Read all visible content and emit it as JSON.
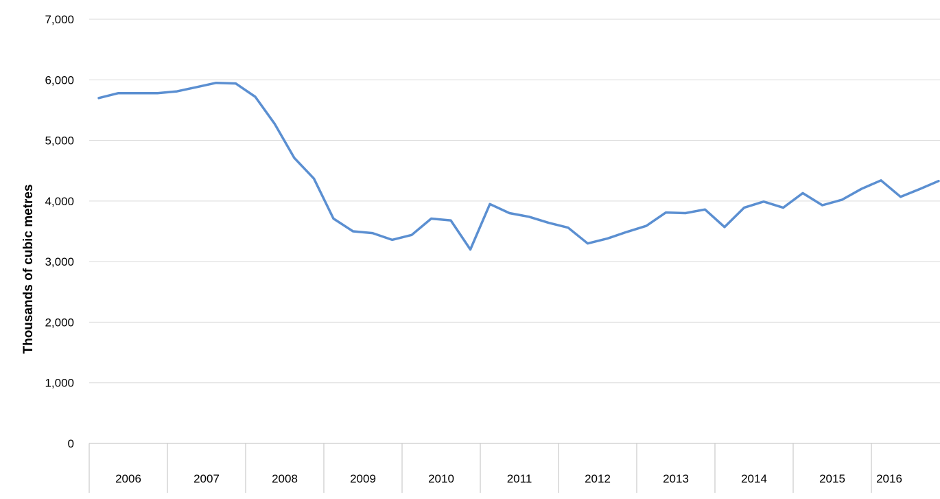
{
  "chart_data": {
    "type": "line",
    "title": "",
    "xlabel": "",
    "ylabel": "Thousands of cubic metres",
    "ylim": [
      0,
      7000
    ],
    "yticks": [
      0,
      1000,
      2000,
      3000,
      4000,
      5000,
      6000,
      7000
    ],
    "ytick_labels": [
      "0",
      "1,000",
      "2,000",
      "3,000",
      "4,000",
      "5,000",
      "6,000",
      "7,000"
    ],
    "grid": true,
    "legend": "none",
    "years": [
      "2006",
      "2007",
      "2008",
      "2009",
      "2010",
      "2011",
      "2012",
      "2013",
      "2014",
      "2015",
      "2016"
    ],
    "points_per_year": 4,
    "series": [
      {
        "color": "#5b8fd1",
        "values": [
          5700,
          5780,
          5780,
          5780,
          5810,
          5880,
          5950,
          5940,
          5720,
          5270,
          4710,
          4370,
          3710,
          3500,
          3470,
          3360,
          3440,
          3710,
          3680,
          3200,
          3950,
          3800,
          3740,
          3640,
          3560,
          3300,
          3380,
          3490,
          3590,
          3810,
          3800,
          3860,
          3570,
          3890,
          3990,
          3890,
          4130,
          3930,
          4020,
          4200,
          4340,
          4070,
          4200,
          4330
        ]
      }
    ]
  }
}
